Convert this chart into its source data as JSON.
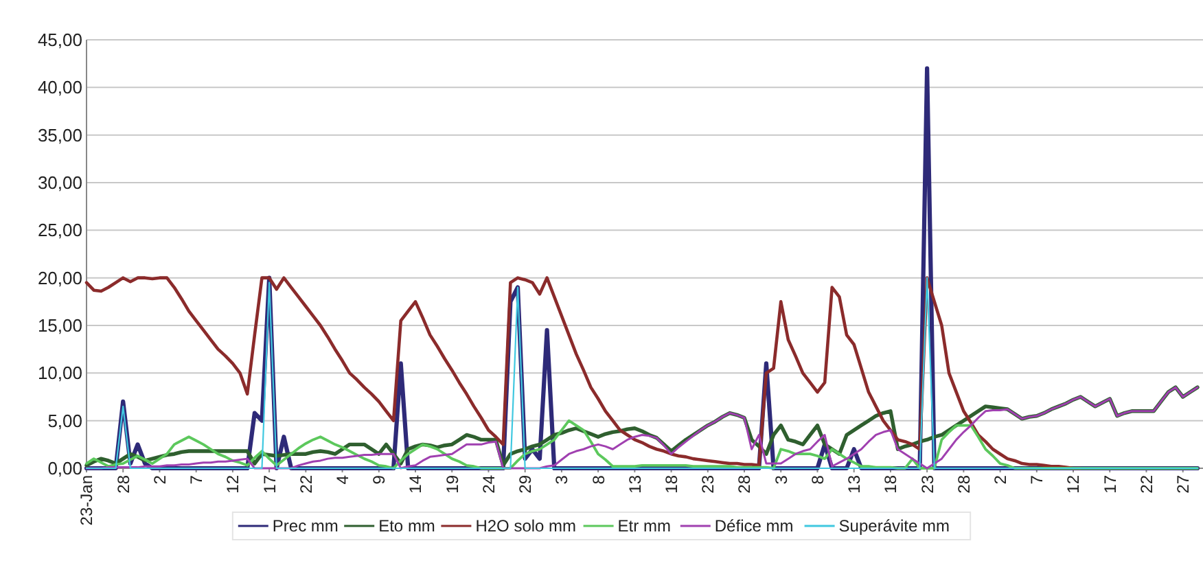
{
  "chart_data": {
    "type": "line",
    "ylim": [
      0,
      45
    ],
    "categories": [
      "23-Jan",
      null,
      null,
      null,
      null,
      "28",
      null,
      null,
      null,
      null,
      "2",
      null,
      null,
      null,
      null,
      "7",
      null,
      null,
      null,
      null,
      "12",
      null,
      null,
      null,
      null,
      "17",
      null,
      null,
      null,
      null,
      "22",
      null,
      null,
      null,
      null,
      "4",
      null,
      null,
      null,
      null,
      "9",
      null,
      null,
      null,
      null,
      "14",
      null,
      null,
      null,
      null,
      "19",
      null,
      null,
      null,
      null,
      "24",
      null,
      null,
      null,
      null,
      "29",
      null,
      null,
      null,
      null,
      "3",
      null,
      null,
      null,
      null,
      "8",
      null,
      null,
      null,
      null,
      "13",
      null,
      null,
      null,
      null,
      "18",
      null,
      null,
      null,
      null,
      "23",
      null,
      null,
      null,
      null,
      "28",
      null,
      null,
      null,
      null,
      "3",
      null,
      null,
      null,
      null,
      "8",
      null,
      null,
      null,
      null,
      "13",
      null,
      null,
      null,
      null,
      "18",
      null,
      null,
      null,
      null,
      "23",
      null,
      null,
      null,
      null,
      "28",
      null,
      null,
      null,
      null,
      "2",
      null,
      null,
      null,
      null,
      "7",
      null,
      null,
      null,
      null,
      "12",
      null,
      null,
      null,
      null,
      "17",
      null,
      null,
      null,
      null,
      "22",
      null,
      null,
      null,
      null,
      "27",
      null,
      null
    ],
    "yticks": [
      {
        "value": 0,
        "label": "0,00"
      },
      {
        "value": 5,
        "label": "5,00"
      },
      {
        "value": 10,
        "label": "10,00"
      },
      {
        "value": 15,
        "label": "15,00"
      },
      {
        "value": 20,
        "label": "20,00"
      },
      {
        "value": 25,
        "label": "25,00"
      },
      {
        "value": 30,
        "label": "30,00"
      },
      {
        "value": 35,
        "label": "35,00"
      },
      {
        "value": 40,
        "label": "40,00"
      },
      {
        "value": 45,
        "label": "45,00"
      }
    ],
    "grid": "y",
    "legend": "bottom",
    "line_style": "solid",
    "marker": "none",
    "series": [
      {
        "name": "Prec mm",
        "color": "#2e2a78",
        "values": [
          0,
          0,
          0,
          0,
          0,
          7,
          0.5,
          2.5,
          0.5,
          0,
          0,
          0,
          0,
          0,
          0,
          0,
          0,
          0,
          0,
          0,
          0,
          0,
          0,
          5.8,
          5,
          20,
          0,
          3.3,
          0,
          0,
          0,
          0,
          0,
          0,
          0,
          0,
          0,
          0,
          0,
          0,
          0,
          0,
          0,
          11,
          0,
          0,
          0,
          0,
          0,
          0,
          0,
          0,
          0,
          0,
          0,
          0,
          0,
          0,
          17.5,
          19,
          1,
          2,
          1,
          14.5,
          0,
          0,
          0,
          0,
          0,
          0,
          0,
          0,
          0,
          0,
          0,
          0,
          0,
          0,
          0,
          0,
          0,
          0,
          0,
          0,
          0,
          0,
          0,
          0,
          0,
          0,
          0,
          0,
          0,
          11,
          0,
          0,
          0,
          0,
          0,
          0,
          0,
          2.5,
          0,
          0,
          0,
          2,
          0,
          0,
          0,
          0,
          0,
          0,
          0,
          0,
          0,
          42,
          0,
          0,
          0,
          0,
          0,
          0,
          0,
          0,
          0,
          0,
          0,
          0,
          0,
          0,
          0,
          0,
          0,
          0,
          0,
          0,
          0,
          0,
          0,
          0,
          0,
          0,
          0,
          0,
          0,
          0,
          0,
          0,
          0,
          0,
          0,
          0,
          0
        ]
      },
      {
        "name": "Eto mm",
        "color": "#2f5f2f",
        "values": [
          0.3,
          0.7,
          1,
          0.8,
          0.5,
          1,
          1.5,
          1.2,
          0.8,
          1,
          1.2,
          1.4,
          1.5,
          1.7,
          1.8,
          1.8,
          1.8,
          1.8,
          1.8,
          1.8,
          1.8,
          1.8,
          1.8,
          0.5,
          1.5,
          1.4,
          1.3,
          1.4,
          1.5,
          1.5,
          1.5,
          1.7,
          1.8,
          1.7,
          1.5,
          2,
          2.5,
          2.5,
          2.5,
          2,
          1.5,
          2.5,
          1.5,
          0.5,
          2,
          2.3,
          2.5,
          2.4,
          2.2,
          2.4,
          2.5,
          3,
          3.5,
          3.3,
          3,
          3,
          3,
          0.3,
          1.5,
          1.8,
          2,
          2.3,
          2.5,
          3,
          3.5,
          3.7,
          4,
          4.2,
          3.9,
          3.6,
          3.3,
          3.6,
          3.8,
          3.9,
          4.1,
          4.2,
          3.9,
          3.5,
          3.2,
          2.5,
          1.8,
          2.4,
          3,
          3.5,
          4,
          4.5,
          4.9,
          5.4,
          5.8,
          5.6,
          5.3,
          3,
          2.3,
          1.5,
          3.5,
          4.5,
          3,
          2.8,
          2.5,
          3.5,
          4.5,
          2.5,
          2,
          1.5,
          3.5,
          4,
          4.5,
          5,
          5.5,
          5.8,
          6,
          2,
          2.3,
          2.5,
          2.8,
          3,
          3.3,
          3.5,
          4,
          4.5,
          5,
          5.5,
          6,
          6.5,
          6.4,
          6.3,
          6.2,
          5.7,
          5.2,
          5.4,
          5.5,
          5.8,
          6.2,
          6.5,
          6.8,
          7.2,
          7.5,
          7,
          6.5,
          6.9,
          7.3,
          5.5,
          5.8,
          6,
          6,
          6,
          6,
          7,
          8,
          8.5,
          7.5,
          8,
          8.5
        ]
      },
      {
        "name": "H2O solo mm",
        "color": "#8b2b2b",
        "values": [
          19.5,
          18.7,
          18.6,
          19,
          19.5,
          20,
          19.6,
          20,
          20,
          19.9,
          20,
          20,
          19,
          17.8,
          16.5,
          15.5,
          14.5,
          13.5,
          12.5,
          11.8,
          11,
          10,
          7.8,
          14,
          20,
          20,
          18.8,
          20,
          19,
          18,
          17,
          16,
          15,
          13.8,
          12.5,
          11.3,
          10,
          9.3,
          8.5,
          7.8,
          7,
          6,
          5,
          15.5,
          16.5,
          17.5,
          15.8,
          14,
          12.8,
          11.5,
          10.3,
          9,
          7.8,
          6.5,
          5.3,
          4,
          3.3,
          2.5,
          19.5,
          20,
          19.8,
          19.5,
          18.3,
          20,
          18,
          16,
          14,
          12,
          10.3,
          8.5,
          7.3,
          6,
          5,
          4,
          3.5,
          3,
          2.7,
          2.3,
          2,
          1.8,
          1.5,
          1.3,
          1.2,
          1,
          0.9,
          0.8,
          0.7,
          0.6,
          0.5,
          0.5,
          0.4,
          0.4,
          0.3,
          10,
          10.5,
          17.5,
          13.5,
          11.8,
          10,
          9,
          8,
          9,
          19,
          18,
          14,
          13,
          10.5,
          8,
          6.5,
          5,
          4,
          3,
          2.8,
          2.5,
          2,
          20,
          17.5,
          15,
          10,
          8,
          6,
          4.8,
          3.5,
          2.8,
          2,
          1.5,
          1,
          0.8,
          0.5,
          0.4,
          0.4,
          0.3,
          0.2,
          0.2,
          0.1,
          0,
          0,
          null,
          null,
          null,
          null,
          null,
          null,
          null,
          null,
          null,
          null,
          null,
          null,
          null,
          null,
          null,
          null
        ]
      },
      {
        "name": "Etr mm",
        "color": "#5cc85c",
        "values": [
          0.5,
          1,
          0.6,
          0.2,
          0.4,
          0.5,
          0.9,
          1.3,
          0.9,
          0.5,
          1,
          1.5,
          2.5,
          2.9,
          3.3,
          2.9,
          2.5,
          2,
          1.5,
          1.2,
          0.8,
          0.6,
          0.3,
          1.1,
          1.8,
          1,
          0.3,
          0.9,
          1.5,
          2.1,
          2.6,
          3,
          3.3,
          2.9,
          2.5,
          2.2,
          1.8,
          1.4,
          1,
          0.7,
          0.3,
          0.2,
          0,
          0.8,
          1.5,
          2,
          2.5,
          2.3,
          2,
          1.5,
          1,
          0.7,
          0.3,
          0.2,
          0,
          0,
          0,
          0,
          0,
          0.8,
          1.5,
          1.8,
          2,
          2.5,
          3,
          4,
          5,
          4.5,
          4,
          2.8,
          1.5,
          0.9,
          0.2,
          0.2,
          0.2,
          0.2,
          0.3,
          0.3,
          0.3,
          0.3,
          0.3,
          0.3,
          0.3,
          0.2,
          0.2,
          0.2,
          0.2,
          0.2,
          0.2,
          0.1,
          0.1,
          0.1,
          0.1,
          0.1,
          0,
          2,
          1.8,
          1.5,
          1.5,
          1.5,
          1.3,
          1,
          2,
          1.5,
          1,
          0.6,
          0.2,
          0.2,
          0.1,
          0.1,
          0.1,
          0,
          0,
          1,
          0,
          0,
          0,
          3,
          3.8,
          4.5,
          4.5,
          4.5,
          3.3,
          2,
          1.3,
          0.5,
          0.3,
          0,
          0,
          0,
          0,
          0,
          0,
          0,
          0,
          0,
          0,
          0,
          0,
          0,
          0,
          0,
          0,
          0,
          0,
          0,
          0,
          0,
          0,
          0,
          0,
          0,
          0
        ]
      },
      {
        "name": "Défice mm",
        "color": "#a040b0",
        "values": [
          0,
          0,
          0,
          0.1,
          0.1,
          0.1,
          0.1,
          0.1,
          0.2,
          0.2,
          0.2,
          0.3,
          0.3,
          0.4,
          0.4,
          0.5,
          0.6,
          0.6,
          0.7,
          0.7,
          0.8,
          0.9,
          1,
          0,
          0,
          0,
          0,
          0,
          0,
          0.3,
          0.5,
          0.7,
          0.8,
          1,
          1.1,
          1.1,
          1.2,
          1.3,
          1.4,
          1.4,
          1.5,
          1.5,
          1.5,
          0,
          0.2,
          0.3,
          0.8,
          1.2,
          1.3,
          1.4,
          1.5,
          2,
          2.5,
          2.5,
          2.5,
          2.7,
          2.8,
          0,
          0,
          0,
          0,
          0,
          0,
          0.2,
          0.3,
          0.9,
          1.5,
          1.8,
          2,
          2.3,
          2.5,
          2.3,
          2,
          2.5,
          3,
          3.3,
          3.5,
          3.4,
          3.2,
          2.4,
          1.5,
          2.2,
          2.8,
          3.4,
          4,
          4.5,
          4.9,
          5.4,
          5.8,
          5.6,
          5.3,
          2,
          3.5,
          0.5,
          0.5,
          0.5,
          1,
          1.5,
          1.8,
          2,
          2.8,
          3.5,
          0.2,
          0.6,
          1,
          1.5,
          2,
          2.8,
          3.5,
          3.8,
          4,
          2,
          1.5,
          1,
          0.5,
          0,
          0.5,
          1,
          2,
          3,
          3.8,
          4.5,
          5.3,
          6,
          6.1,
          6.1,
          6.2,
          5.7,
          5.2,
          5.4,
          5.5,
          5.8,
          6.2,
          6.5,
          6.8,
          7.2,
          7.5,
          7,
          6.5,
          6.9,
          7.3,
          5.5,
          5.8,
          6,
          6,
          6,
          6,
          7,
          8,
          8.5,
          7.5,
          8,
          8.5
        ]
      },
      {
        "name": "Superávite mm",
        "color": "#40c8e0",
        "values": [
          0,
          0,
          0,
          0,
          0,
          6.5,
          0,
          0,
          0,
          0,
          0,
          0,
          0,
          0,
          0,
          0,
          0,
          0,
          0,
          0,
          0,
          0,
          0,
          0,
          0,
          19.5,
          0,
          0,
          0,
          0,
          0,
          0,
          0,
          0,
          0,
          0,
          0,
          0,
          0,
          0,
          0,
          0,
          0,
          0,
          0,
          0,
          0,
          0,
          0,
          0,
          0,
          0,
          0,
          0,
          0,
          0,
          0,
          0,
          0,
          19,
          0,
          0,
          0,
          0,
          0,
          0,
          0,
          0,
          0,
          0,
          0,
          0,
          0,
          0,
          0,
          0,
          0,
          0,
          0,
          0,
          0,
          0,
          0,
          0,
          0,
          0,
          0,
          0,
          0,
          0,
          0,
          0,
          0,
          0,
          0,
          0,
          0,
          0,
          0,
          0,
          0,
          0,
          0,
          0,
          0,
          0,
          0,
          0,
          0,
          0,
          0,
          0,
          0,
          0,
          0,
          20,
          0,
          0,
          0,
          0,
          0,
          0,
          0,
          0,
          0,
          0,
          0,
          0,
          0,
          0,
          0,
          0,
          0,
          0,
          0,
          0,
          0,
          0,
          0,
          0,
          0,
          0,
          0,
          0,
          0,
          0,
          0,
          0,
          0,
          0,
          0,
          0,
          0
        ]
      }
    ]
  }
}
